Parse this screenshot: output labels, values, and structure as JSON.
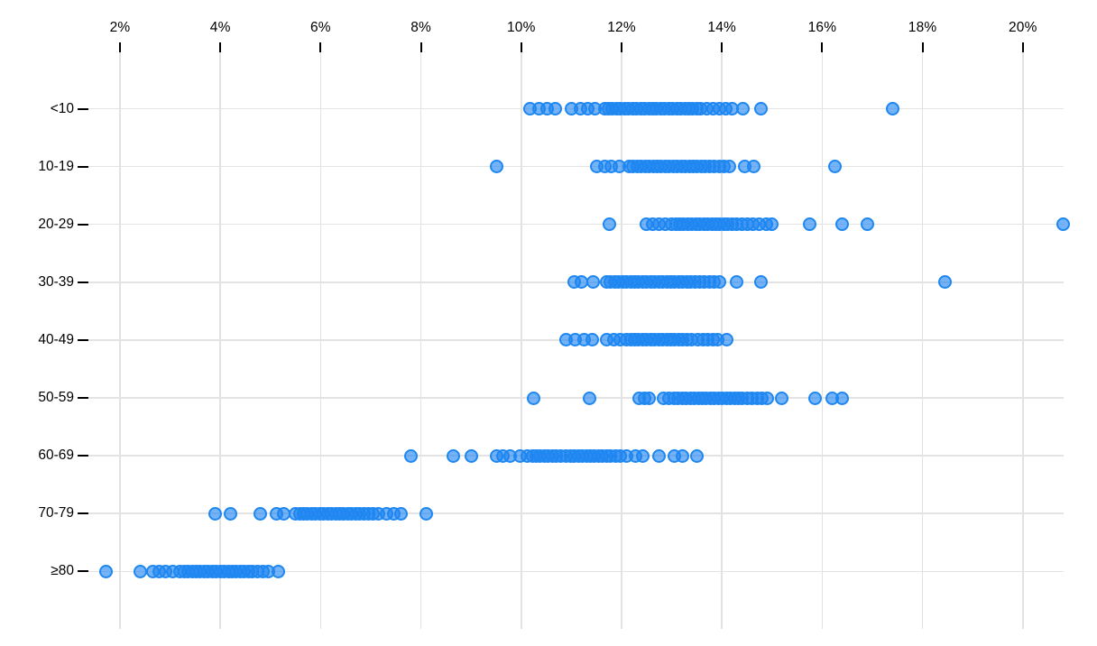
{
  "chart_data": {
    "type": "scatter",
    "variant": "strip-dot-plot",
    "xlabel": "",
    "ylabel": "",
    "x_axis": {
      "tick_labels": [
        "2%",
        "4%",
        "6%",
        "8%",
        "10%",
        "12%",
        "14%",
        "16%",
        "18%",
        "20%"
      ],
      "tick_values": [
        2,
        4,
        6,
        8,
        10,
        12,
        14,
        16,
        18,
        20
      ],
      "unit": "%",
      "range": [
        1.4,
        21.5
      ],
      "grid": true,
      "position": "top"
    },
    "y_axis": {
      "categories": [
        "<10",
        "10-19",
        "20-29",
        "30-39",
        "40-49",
        "50-59",
        "60-69",
        "70-79",
        "≥80"
      ],
      "grid": true
    },
    "legend": "none",
    "colors": {
      "dot_stroke": "#1f87f0",
      "dot_fill": "rgba(31,133,242,0.62)",
      "gridline": "#e2e2e2",
      "axis_text": "#000000"
    },
    "series": [
      {
        "category": "<10",
        "values": [
          10.18,
          10.36,
          10.52,
          10.67,
          11.0,
          11.18,
          11.33,
          11.47,
          11.66,
          11.74,
          11.82,
          11.9,
          11.98,
          12.06,
          12.14,
          12.22,
          12.3,
          12.38,
          12.46,
          12.54,
          12.62,
          12.7,
          12.78,
          12.86,
          12.94,
          13.02,
          13.1,
          13.18,
          13.26,
          13.34,
          13.42,
          13.5,
          13.58,
          13.7,
          13.82,
          13.95,
          14.08,
          14.2,
          14.42,
          14.78,
          17.4
        ]
      },
      {
        "category": "10-19",
        "values": [
          9.5,
          11.5,
          11.66,
          11.8,
          11.95,
          12.15,
          12.23,
          12.31,
          12.39,
          12.47,
          12.55,
          12.63,
          12.71,
          12.79,
          12.87,
          12.95,
          13.03,
          13.11,
          13.19,
          13.27,
          13.35,
          13.43,
          13.51,
          13.59,
          13.67,
          13.75,
          13.85,
          13.95,
          14.05,
          14.15,
          14.45,
          14.63,
          16.25
        ]
      },
      {
        "category": "20-29",
        "values": [
          11.75,
          12.5,
          12.62,
          12.75,
          12.88,
          13.0,
          13.08,
          13.16,
          13.24,
          13.32,
          13.4,
          13.48,
          13.56,
          13.64,
          13.72,
          13.8,
          13.88,
          13.96,
          14.04,
          14.12,
          14.2,
          14.3,
          14.4,
          14.5,
          14.62,
          14.75,
          14.88,
          15.0,
          15.75,
          16.4,
          16.9,
          20.8
        ]
      },
      {
        "category": "30-39",
        "values": [
          11.05,
          11.2,
          11.44,
          11.7,
          11.78,
          11.86,
          11.94,
          12.02,
          12.1,
          12.18,
          12.26,
          12.34,
          12.42,
          12.5,
          12.58,
          12.66,
          12.74,
          12.82,
          12.9,
          12.98,
          13.06,
          13.14,
          13.22,
          13.3,
          13.38,
          13.46,
          13.55,
          13.65,
          13.75,
          13.85,
          13.95,
          14.3,
          14.77,
          18.44
        ]
      },
      {
        "category": "40-49",
        "values": [
          10.9,
          11.08,
          11.26,
          11.42,
          11.7,
          11.84,
          11.98,
          12.1,
          12.18,
          12.26,
          12.34,
          12.42,
          12.5,
          12.58,
          12.66,
          12.74,
          12.82,
          12.9,
          12.98,
          13.06,
          13.14,
          13.22,
          13.3,
          13.4,
          13.52,
          13.62,
          13.72,
          13.82,
          13.92,
          14.1
        ]
      },
      {
        "category": "50-59",
        "values": [
          10.25,
          11.37,
          12.35,
          12.45,
          12.55,
          12.83,
          12.95,
          13.05,
          13.13,
          13.21,
          13.29,
          13.37,
          13.45,
          13.53,
          13.61,
          13.69,
          13.77,
          13.85,
          13.93,
          14.01,
          14.09,
          14.17,
          14.25,
          14.33,
          14.41,
          14.5,
          14.6,
          14.7,
          14.8,
          14.9,
          15.2,
          15.85,
          16.2,
          16.4
        ]
      },
      {
        "category": "60-69",
        "values": [
          7.8,
          8.65,
          9.0,
          9.5,
          9.64,
          9.78,
          9.98,
          10.12,
          10.22,
          10.3,
          10.38,
          10.46,
          10.54,
          10.62,
          10.7,
          10.78,
          10.9,
          10.98,
          11.06,
          11.14,
          11.22,
          11.3,
          11.38,
          11.46,
          11.54,
          11.62,
          11.7,
          11.78,
          11.88,
          11.98,
          12.1,
          12.28,
          12.42,
          12.74,
          13.05,
          13.22,
          13.5
        ]
      },
      {
        "category": "70-79",
        "values": [
          3.89,
          4.2,
          4.8,
          5.12,
          5.26,
          5.5,
          5.58,
          5.66,
          5.74,
          5.82,
          5.9,
          5.98,
          6.06,
          6.14,
          6.22,
          6.3,
          6.38,
          6.46,
          6.54,
          6.62,
          6.7,
          6.78,
          6.86,
          6.95,
          7.05,
          7.15,
          7.32,
          7.45,
          7.6,
          8.1
        ]
      },
      {
        "category": "≥80",
        "values": [
          1.73,
          2.4,
          2.65,
          2.78,
          2.9,
          3.05,
          3.2,
          3.28,
          3.36,
          3.44,
          3.52,
          3.6,
          3.68,
          3.76,
          3.84,
          3.92,
          4.0,
          4.08,
          4.16,
          4.24,
          4.32,
          4.4,
          4.48,
          4.56,
          4.64,
          4.74,
          4.85,
          4.95,
          5.15
        ]
      }
    ]
  }
}
